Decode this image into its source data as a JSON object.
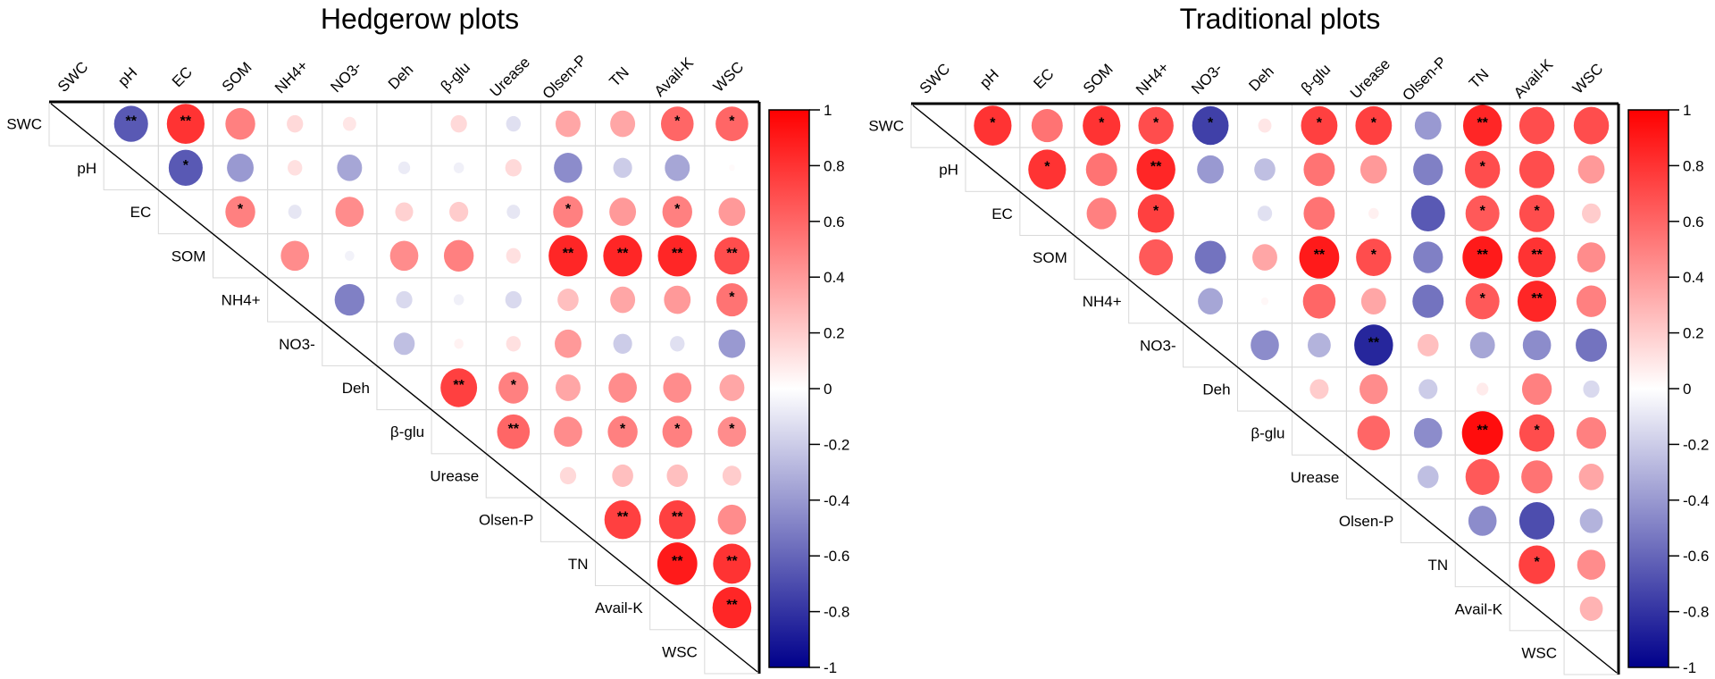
{
  "chart_data": [
    {
      "type": "heatmap",
      "subtype": "correlation-circle-upper-triangle",
      "title": "Hedgerow plots",
      "variables": [
        "SWC",
        "pH",
        "EC",
        "SOM",
        "NH4+",
        "NO3-",
        "Deh",
        "β-glu",
        "Urease",
        "Olsen-P",
        "TN",
        "Avail-K",
        "WSC"
      ],
      "color_scale": {
        "min": -1,
        "max": 1,
        "ticks": [
          1,
          0.8,
          0.6,
          0.4,
          0.2,
          0,
          -0.2,
          -0.4,
          -0.6,
          -0.8,
          -1
        ],
        "low_color": "#00008B",
        "mid_color": "#FFFFFF",
        "high_color": "#FF0000"
      },
      "matrix": [
        [
          null,
          -0.65,
          0.8,
          0.5,
          0.15,
          0.1,
          0,
          0.15,
          -0.12,
          0.35,
          0.35,
          0.6,
          0.6
        ],
        [
          null,
          null,
          -0.65,
          -0.4,
          0.12,
          -0.35,
          -0.08,
          -0.06,
          0.15,
          -0.45,
          -0.2,
          -0.35,
          0.02
        ],
        [
          null,
          null,
          null,
          0.5,
          -0.1,
          0.45,
          0.18,
          0.2,
          -0.1,
          0.5,
          0.4,
          0.5,
          0.4
        ],
        [
          null,
          null,
          null,
          null,
          0.45,
          -0.05,
          0.45,
          0.5,
          0.12,
          0.85,
          0.85,
          0.85,
          0.7
        ],
        [
          null,
          null,
          null,
          null,
          null,
          -0.5,
          -0.15,
          -0.06,
          -0.15,
          0.25,
          0.35,
          0.4,
          0.55
        ],
        [
          null,
          null,
          null,
          null,
          null,
          null,
          -0.25,
          0.05,
          0.12,
          0.4,
          -0.2,
          -0.12,
          -0.4
        ],
        [
          null,
          null,
          null,
          null,
          null,
          null,
          null,
          0.75,
          0.5,
          0.35,
          0.45,
          0.45,
          0.35
        ],
        [
          null,
          null,
          null,
          null,
          null,
          null,
          null,
          null,
          0.6,
          0.45,
          0.5,
          0.5,
          0.45
        ],
        [
          null,
          null,
          null,
          null,
          null,
          null,
          null,
          null,
          null,
          0.15,
          0.25,
          0.25,
          0.2
        ],
        [
          null,
          null,
          null,
          null,
          null,
          null,
          null,
          null,
          null,
          null,
          0.75,
          0.75,
          0.45
        ],
        [
          null,
          null,
          null,
          null,
          null,
          null,
          null,
          null,
          null,
          null,
          null,
          0.9,
          0.8
        ],
        [
          null,
          null,
          null,
          null,
          null,
          null,
          null,
          null,
          null,
          null,
          null,
          null,
          0.85
        ],
        [
          null,
          null,
          null,
          null,
          null,
          null,
          null,
          null,
          null,
          null,
          null,
          null,
          null
        ]
      ],
      "significance": [
        [
          "",
          "**",
          "**",
          "",
          "",
          "",
          "",
          "",
          "",
          "",
          "",
          "*",
          "*"
        ],
        [
          "",
          "",
          "*",
          "",
          "",
          "",
          "",
          "",
          "",
          "",
          "",
          "",
          ""
        ],
        [
          "",
          "",
          "",
          "*",
          "",
          "",
          "",
          "",
          "",
          "*",
          "",
          "*",
          ""
        ],
        [
          "",
          "",
          "",
          "",
          "",
          "",
          "",
          "",
          "",
          "**",
          "**",
          "**",
          "**"
        ],
        [
          "",
          "",
          "",
          "",
          "",
          "",
          "",
          "",
          "",
          "",
          "",
          "",
          "*"
        ],
        [
          "",
          "",
          "",
          "",
          "",
          "",
          "",
          "",
          "",
          "",
          "",
          "",
          ""
        ],
        [
          "",
          "",
          "",
          "",
          "",
          "",
          "",
          "**",
          "*",
          "",
          "",
          "",
          ""
        ],
        [
          "",
          "",
          "",
          "",
          "",
          "",
          "",
          "",
          "**",
          "",
          "*",
          "*",
          "*"
        ],
        [
          "",
          "",
          "",
          "",
          "",
          "",
          "",
          "",
          "",
          "",
          "",
          "",
          ""
        ],
        [
          "",
          "",
          "",
          "",
          "",
          "",
          "",
          "",
          "",
          "",
          "**",
          "**",
          ""
        ],
        [
          "",
          "",
          "",
          "",
          "",
          "",
          "",
          "",
          "",
          "",
          "",
          "**",
          "**"
        ],
        [
          "",
          "",
          "",
          "",
          "",
          "",
          "",
          "",
          "",
          "",
          "",
          "",
          "**"
        ],
        [
          "",
          "",
          "",
          "",
          "",
          "",
          "",
          "",
          "",
          "",
          "",
          "",
          ""
        ]
      ]
    },
    {
      "type": "heatmap",
      "subtype": "correlation-circle-upper-triangle",
      "title": "Traditional plots",
      "variables": [
        "SWC",
        "pH",
        "EC",
        "SOM",
        "NH4+",
        "NO3-",
        "Deh",
        "β-glu",
        "Urease",
        "Olsen-P",
        "TN",
        "Avail-K",
        "WSC"
      ],
      "color_scale": {
        "min": -1,
        "max": 1,
        "ticks": [
          1,
          0.8,
          0.6,
          0.4,
          0.2,
          0,
          -0.2,
          -0.4,
          -0.6,
          -0.8,
          -1
        ],
        "low_color": "#00008B",
        "mid_color": "#FFFFFF",
        "high_color": "#FF0000"
      },
      "matrix": [
        [
          null,
          0.8,
          0.55,
          0.8,
          0.7,
          -0.75,
          0.1,
          0.75,
          0.75,
          -0.4,
          0.85,
          0.7,
          0.7
        ],
        [
          null,
          null,
          0.8,
          0.55,
          0.85,
          -0.4,
          -0.25,
          0.55,
          0.4,
          -0.5,
          0.7,
          0.7,
          0.4
        ],
        [
          null,
          null,
          null,
          0.5,
          0.75,
          0,
          -0.12,
          0.55,
          0.06,
          -0.65,
          0.65,
          0.7,
          0.2
        ],
        [
          null,
          null,
          null,
          null,
          0.65,
          -0.55,
          0.35,
          0.9,
          0.7,
          -0.5,
          0.9,
          0.8,
          0.45
        ],
        [
          null,
          null,
          null,
          null,
          null,
          -0.35,
          0.03,
          0.6,
          0.35,
          -0.55,
          0.65,
          0.85,
          0.5
        ],
        [
          null,
          null,
          null,
          null,
          null,
          null,
          -0.45,
          -0.3,
          -0.85,
          0.25,
          -0.35,
          -0.45,
          -0.55
        ],
        [
          null,
          null,
          null,
          null,
          null,
          null,
          null,
          0.2,
          0.45,
          -0.2,
          0.08,
          0.5,
          -0.15
        ],
        [
          null,
          null,
          null,
          null,
          null,
          null,
          null,
          null,
          0.6,
          -0.45,
          0.95,
          0.7,
          0.5
        ],
        [
          null,
          null,
          null,
          null,
          null,
          null,
          null,
          null,
          null,
          -0.25,
          0.65,
          0.55,
          0.35
        ],
        [
          null,
          null,
          null,
          null,
          null,
          null,
          null,
          null,
          null,
          null,
          -0.45,
          -0.7,
          -0.3
        ],
        [
          null,
          null,
          null,
          null,
          null,
          null,
          null,
          null,
          null,
          null,
          null,
          0.75,
          0.45
        ],
        [
          null,
          null,
          null,
          null,
          null,
          null,
          null,
          null,
          null,
          null,
          null,
          null,
          0.3
        ],
        [
          null,
          null,
          null,
          null,
          null,
          null,
          null,
          null,
          null,
          null,
          null,
          null,
          null
        ]
      ],
      "significance": [
        [
          "",
          "*",
          "",
          "*",
          "*",
          "*",
          "",
          "*",
          "*",
          "",
          "**",
          "",
          ""
        ],
        [
          "",
          "",
          "*",
          "",
          "**",
          "",
          "",
          "",
          "",
          "",
          "*",
          "",
          ""
        ],
        [
          "",
          "",
          "",
          "",
          "*",
          "",
          "",
          "",
          "",
          "",
          "*",
          "*",
          ""
        ],
        [
          "",
          "",
          "",
          "",
          "",
          "",
          "",
          "**",
          "*",
          "",
          "**",
          "**",
          ""
        ],
        [
          "",
          "",
          "",
          "",
          "",
          "",
          "",
          "",
          "",
          "",
          "*",
          "**",
          ""
        ],
        [
          "",
          "",
          "",
          "",
          "",
          "",
          "",
          "",
          "**",
          "",
          "",
          "",
          ""
        ],
        [
          "",
          "",
          "",
          "",
          "",
          "",
          "",
          "",
          "",
          "",
          "",
          "",
          ""
        ],
        [
          "",
          "",
          "",
          "",
          "",
          "",
          "",
          "",
          "",
          "",
          "**",
          "*",
          ""
        ],
        [
          "",
          "",
          "",
          "",
          "",
          "",
          "",
          "",
          "",
          "",
          "",
          "",
          ""
        ],
        [
          "",
          "",
          "",
          "",
          "",
          "",
          "",
          "",
          "",
          "",
          "",
          "",
          ""
        ],
        [
          "",
          "",
          "",
          "",
          "",
          "",
          "",
          "",
          "",
          "",
          "",
          "*",
          ""
        ],
        [
          "",
          "",
          "",
          "",
          "",
          "",
          "",
          "",
          "",
          "",
          "",
          "",
          ""
        ],
        [
          "",
          "",
          "",
          "",
          "",
          "",
          "",
          "",
          "",
          "",
          "",
          "",
          ""
        ]
      ]
    }
  ]
}
